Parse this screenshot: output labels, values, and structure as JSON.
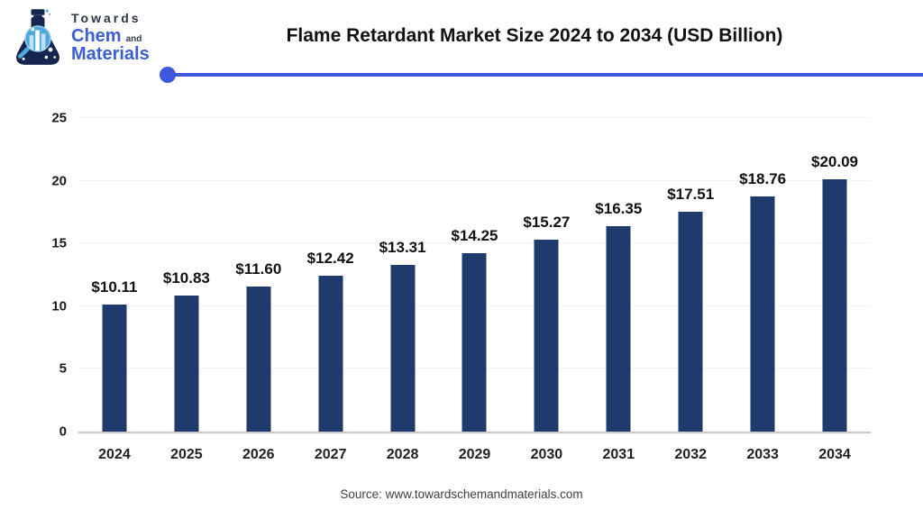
{
  "logo": {
    "line1": "Towards",
    "line2_main": "Chem",
    "line2_suffix": "and",
    "line3": "Materials"
  },
  "header": {
    "title": "Flame Retardant Market Size 2024 to 2034 (USD Billion)"
  },
  "chart_data": {
    "type": "bar",
    "title": "Flame Retardant Market Size 2024 to 2034 (USD Billion)",
    "categories": [
      "2024",
      "2025",
      "2026",
      "2027",
      "2028",
      "2029",
      "2030",
      "2031",
      "2032",
      "2033",
      "2034"
    ],
    "values": [
      10.11,
      10.83,
      11.6,
      12.42,
      13.31,
      14.25,
      15.27,
      16.35,
      17.51,
      18.76,
      20.09
    ],
    "value_labels": [
      "$10.11",
      "$10.83",
      "$11.60",
      "$12.42",
      "$13.31",
      "$14.25",
      "$15.27",
      "$16.35",
      "$17.51",
      "$18.76",
      "$20.09"
    ],
    "xlabel": "",
    "ylabel": "",
    "ylim": [
      0,
      25
    ],
    "yticks": [
      0,
      5,
      10,
      15,
      20,
      25
    ],
    "grid": true,
    "legend": "none",
    "bar_color": "#1f3a6d"
  },
  "colors": {
    "accent_blue": "#3e57dd",
    "bar_navy": "#1f3a6d",
    "flask_navy": "#16264e",
    "flask_light_blue": "#4fa8dd"
  },
  "footer": {
    "source": "Source: www.towardschemandmaterials.com"
  }
}
